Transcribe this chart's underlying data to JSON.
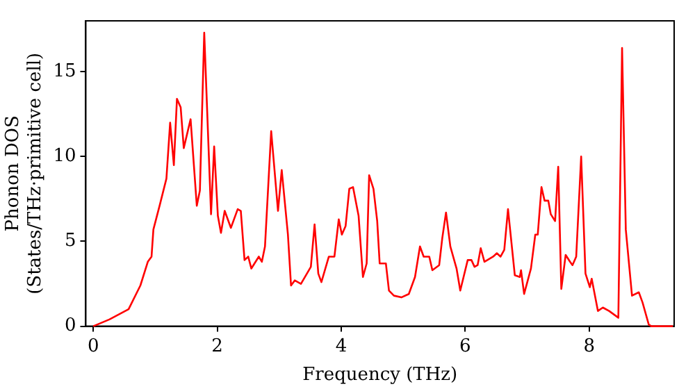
{
  "chart_data": {
    "type": "line",
    "xlabel": "Frequency (THz)",
    "ylabel": "Phonon DOS\n(States/THz·primitive cell)",
    "x": [
      0,
      0.26,
      0.57,
      0.76,
      0.88,
      0.94,
      0.97,
      1.07,
      1.18,
      1.24,
      1.3,
      1.35,
      1.41,
      1.46,
      1.57,
      1.67,
      1.72,
      1.79,
      1.9,
      1.95,
      2.01,
      2.06,
      2.12,
      2.22,
      2.33,
      2.38,
      2.44,
      2.5,
      2.55,
      2.67,
      2.72,
      2.77,
      2.87,
      2.98,
      3.04,
      3.14,
      3.19,
      3.25,
      3.35,
      3.51,
      3.57,
      3.63,
      3.68,
      3.8,
      3.89,
      3.96,
      4.01,
      4.07,
      4.13,
      4.19,
      4.28,
      4.35,
      4.41,
      4.45,
      4.52,
      4.58,
      4.62,
      4.72,
      4.77,
      4.85,
      4.97,
      5.09,
      5.19,
      5.27,
      5.33,
      5.42,
      5.47,
      5.58,
      5.63,
      5.69,
      5.76,
      5.86,
      5.92,
      6.04,
      6.1,
      6.15,
      6.2,
      6.25,
      6.31,
      6.45,
      6.51,
      6.57,
      6.63,
      6.69,
      6.8,
      6.88,
      6.9,
      6.95,
      7.06,
      7.13,
      7.17,
      7.23,
      7.28,
      7.34,
      7.38,
      7.45,
      7.5,
      7.55,
      7.62,
      7.69,
      7.73,
      7.79,
      7.87,
      7.94,
      8.01,
      8.04,
      8.14,
      8.22,
      8.32,
      8.47,
      8.53,
      8.59,
      8.69,
      8.8,
      8.86,
      8.96,
      9.0,
      9.35
    ],
    "series": [
      {
        "color": "#ff0000",
        "values": [
          0,
          0.4,
          1.0,
          2.4,
          3.8,
          4.1,
          5.7,
          7.1,
          8.7,
          12.0,
          9.5,
          13.4,
          12.9,
          10.5,
          12.2,
          7.1,
          8.0,
          17.3,
          6.6,
          10.6,
          6.5,
          5.5,
          6.8,
          5.8,
          6.9,
          6.8,
          3.9,
          4.1,
          3.4,
          4.1,
          3.8,
          4.7,
          11.5,
          6.8,
          9.2,
          5.4,
          2.4,
          2.7,
          2.5,
          3.5,
          6.0,
          3.1,
          2.6,
          4.1,
          4.1,
          6.3,
          5.4,
          5.9,
          8.1,
          8.2,
          6.5,
          2.9,
          3.7,
          8.9,
          8.1,
          6.2,
          3.7,
          3.7,
          2.1,
          1.8,
          1.7,
          1.9,
          2.9,
          4.7,
          4.1,
          4.1,
          3.3,
          3.6,
          5.2,
          6.7,
          4.7,
          3.4,
          2.1,
          3.9,
          3.9,
          3.5,
          3.6,
          4.6,
          3.8,
          4.1,
          4.3,
          4.1,
          4.5,
          6.9,
          3.0,
          2.9,
          3.3,
          1.9,
          3.4,
          5.4,
          5.4,
          8.2,
          7.4,
          7.4,
          6.6,
          6.2,
          9.4,
          2.2,
          4.2,
          3.8,
          3.6,
          4.1,
          10.0,
          3.1,
          2.3,
          2.8,
          0.9,
          1.1,
          0.9,
          0.5,
          16.4,
          5.7,
          1.8,
          2.0,
          1.4,
          0.1,
          0,
          0
        ]
      }
    ],
    "xlim": [
      -0.12,
      9.37
    ],
    "xticks": [
      0,
      2,
      4,
      6,
      8
    ],
    "ylim": [
      0,
      18
    ],
    "yticks": [
      0,
      5,
      10,
      15
    ],
    "grid": false,
    "legend": false,
    "marker": "none",
    "line_style": "solid"
  }
}
